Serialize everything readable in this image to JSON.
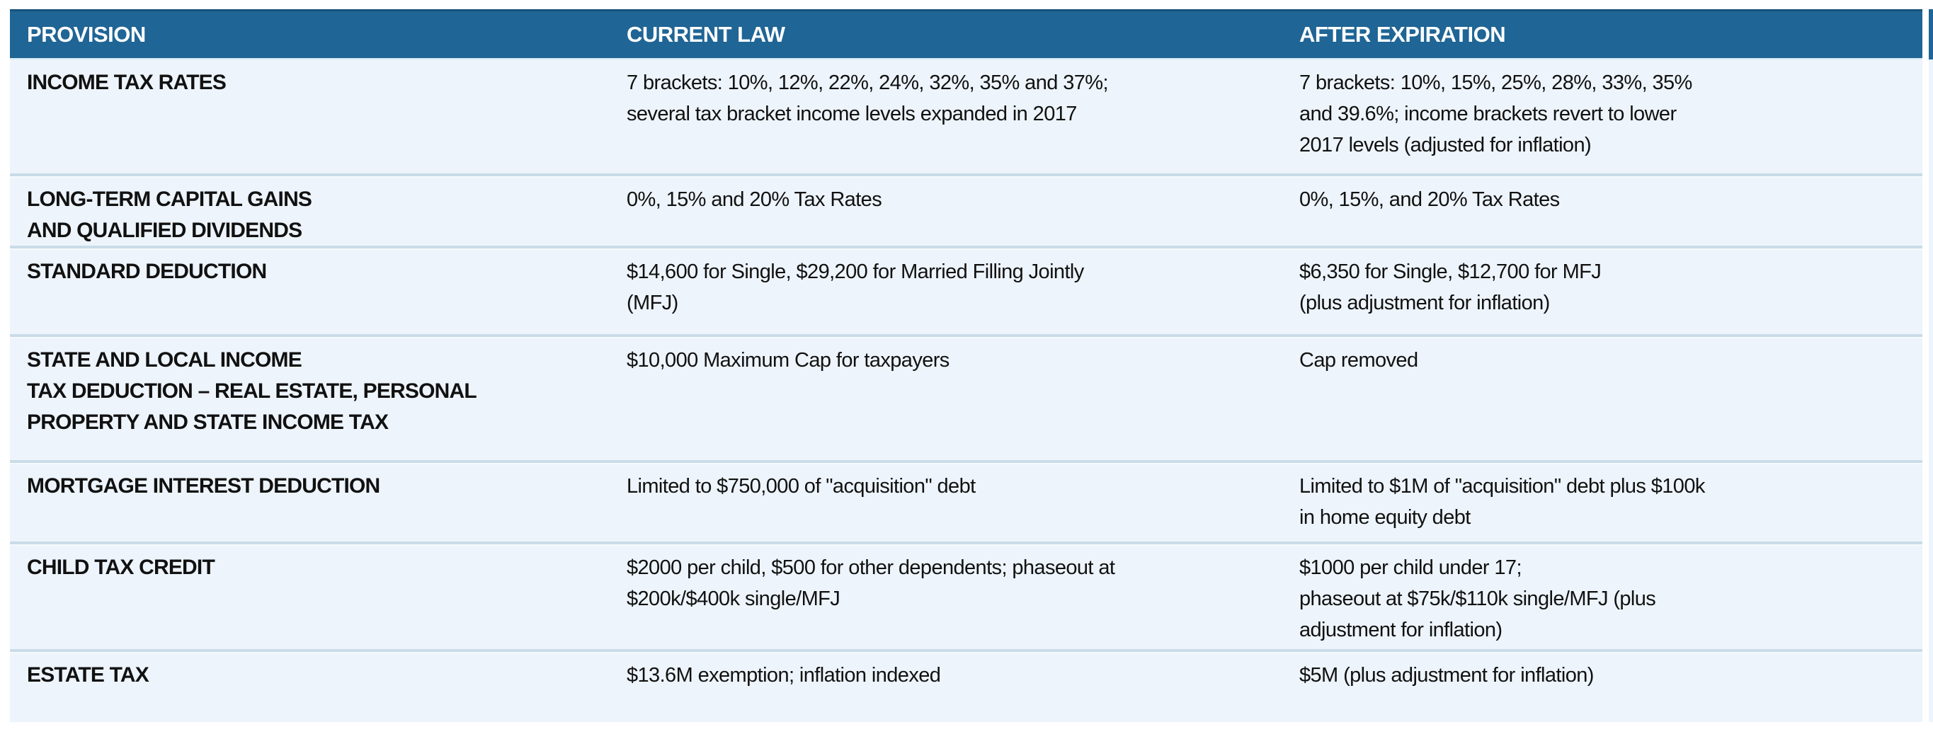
{
  "table": {
    "columns": [
      {
        "label": "PROVISION"
      },
      {
        "label": "CURRENT LAW"
      },
      {
        "label": "AFTER EXPIRATION"
      }
    ],
    "rows": [
      {
        "provision": "INCOME TAX RATES",
        "current_law": "7 brackets: 10%, 12%, 22%, 24%, 32%, 35% and 37%;\nseveral tax bracket income levels expanded in 2017",
        "after_expiration": "7 brackets: 10%, 15%, 25%, 28%, 33%, 35%\nand 39.6%; income brackets revert to lower\n2017 levels (adjusted for inflation)"
      },
      {
        "provision": "LONG-TERM CAPITAL GAINS\nAND QUALIFIED DIVIDENDS",
        "current_law": "0%, 15% and 20% Tax Rates",
        "after_expiration": "0%, 15%, and 20% Tax Rates"
      },
      {
        "provision": "STANDARD DEDUCTION",
        "current_law": "$14,600 for Single, $29,200 for Married Filling Jointly\n(MFJ)",
        "after_expiration": "$6,350 for Single, $12,700 for MFJ\n(plus adjustment for inflation)"
      },
      {
        "provision": "STATE AND LOCAL INCOME\nTAX DEDUCTION – REAL ESTATE, PERSONAL\nPROPERTY AND STATE INCOME TAX",
        "current_law": "$10,000 Maximum Cap for taxpayers",
        "after_expiration": "Cap removed"
      },
      {
        "provision": "MORTGAGE INTEREST DEDUCTION",
        "current_law": "Limited to $750,000 of \"acquisition\" debt",
        "after_expiration": "Limited to $1M of \"acquisition\" debt plus $100k\nin home equity debt"
      },
      {
        "provision": "CHILD TAX CREDIT",
        "current_law": "$2000 per child, $500 for other dependents; phaseout at\n$200k/$400k single/MFJ",
        "after_expiration": "$1000 per child under 17;\nphaseout at $75k/$110k single/MFJ (plus\nadjustment for inflation)"
      },
      {
        "provision": "ESTATE TAX",
        "current_law": "$13.6M exemption; inflation indexed",
        "after_expiration": "$5M (plus adjustment for inflation)"
      }
    ]
  },
  "colors": {
    "header_bg": "#1f6595",
    "header_top_edge": "#16537c",
    "header_text": "#ffffff",
    "row_bg": "#edf4fb",
    "divider": "#c9dce8",
    "body_text": "#111111"
  }
}
